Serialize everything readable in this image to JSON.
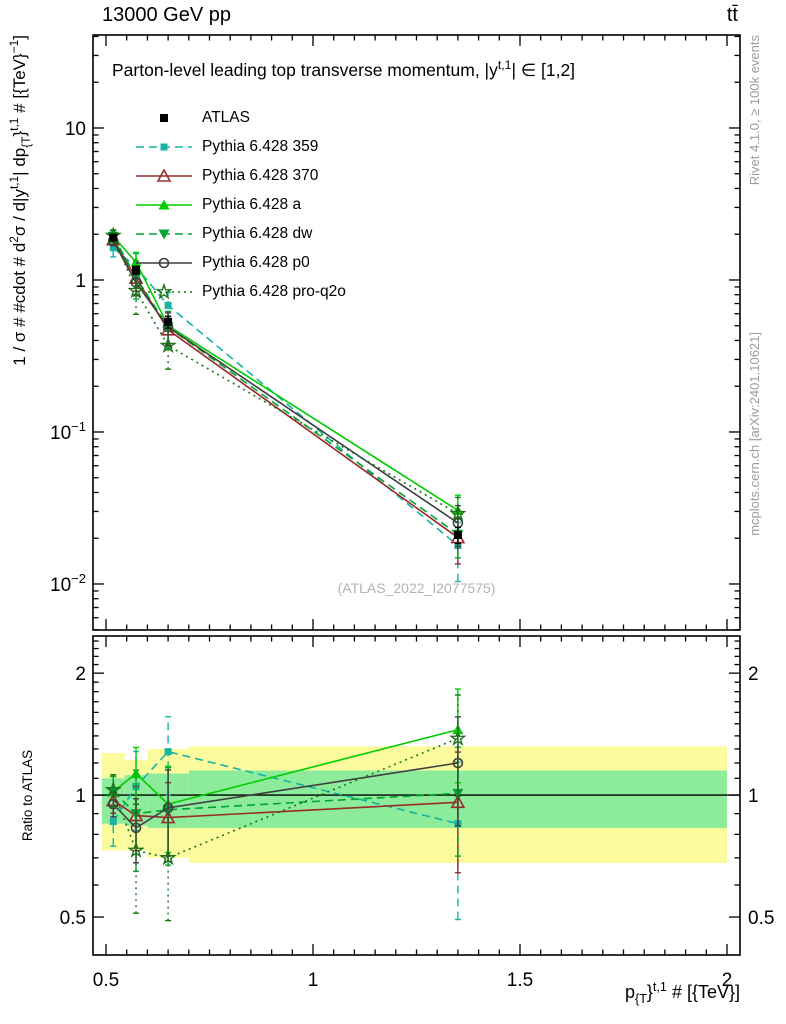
{
  "header": {
    "left": "13000 GeV pp",
    "right": "tt̄"
  },
  "side_notes": {
    "top_right": "Rivet 4.1.0, ≥ 100k events",
    "bottom_right": "mcplots.cern.ch [arXiv:2401.10621]"
  },
  "watermark": "(ATLAS_2022_I2077575)",
  "rich_labels": {
    "plot_title": [
      {
        "t": "Parton-level leading top transverse momentum, |y"
      },
      {
        "t": "t,1",
        "v": "sup"
      },
      {
        "t": "| ∈ [1,2]"
      }
    ],
    "ylabel_main": [
      {
        "t": "1 / σ # #cdot # d"
      },
      {
        "t": "2",
        "v": "sup"
      },
      {
        "t": "σ / d|y"
      },
      {
        "t": "t,1",
        "v": "sup"
      },
      {
        "t": "| dp"
      },
      {
        "t": "{T",
        "v": "sub"
      },
      {
        "t": "}"
      },
      {
        "t": "t,1",
        "v": "sup"
      },
      {
        "t": " # [{TeV}"
      },
      {
        "t": "−1",
        "v": "sup"
      },
      {
        "t": "]"
      }
    ],
    "xlabel": [
      {
        "t": "p"
      },
      {
        "t": "{T",
        "v": "sub"
      },
      {
        "t": "}"
      },
      {
        "t": "t,1",
        "v": "sup"
      },
      {
        "t": " # [{TeV}]"
      }
    ]
  },
  "chart_data": {
    "type": "line",
    "title": "Parton-level leading top transverse momentum, |y^{t,1}| ∈ [1,2]",
    "xlabel": "p_{T}}^{t,1} # [{TeV}]",
    "ylabel": "1 / σ # #cdot # d²σ / d|y^{t,1}| dp_{T}}^{t,1} # [{TeV}^−1]",
    "ylabel_ratio": "Ratio to ATLAS",
    "x_axis": {
      "min": 0.4686,
      "max": 2.0314,
      "major_ticks": [
        0.5,
        1,
        1.5,
        2
      ],
      "labels": [
        "0.5",
        "1",
        "1.5",
        "2"
      ],
      "minor_step": 0.05
    },
    "y_axis_main": {
      "scale": "log",
      "min": 0.00498,
      "max": 40.9,
      "labeled_ticks": [
        {
          "v": 10,
          "base": "10",
          "exp": ""
        },
        {
          "v": 1,
          "base": "1",
          "exp": ""
        },
        {
          "v": 0.1,
          "base": "10",
          "exp": "−1"
        },
        {
          "v": 0.01,
          "base": "10",
          "exp": "−2"
        }
      ]
    },
    "y_axis_ratio": {
      "scale": "log",
      "min": 0.403,
      "max": 2.47,
      "labeled_ticks": [
        {
          "v": 2,
          "base": "2",
          "exp": ""
        },
        {
          "v": 1,
          "base": "1",
          "exp": ""
        },
        {
          "v": 0.5,
          "base": "0.5",
          "exp": ""
        }
      ],
      "minor_step": 0.1
    },
    "x": [
      0.5175,
      0.5725,
      0.65,
      1.35
    ],
    "bin_edges": [
      0.49,
      0.545,
      0.6,
      0.7,
      2.0
    ],
    "reference": {
      "id": "atlas",
      "label": "ATLAS",
      "color": "#000000",
      "marker": "square-filled",
      "values": [
        1.9,
        1.16,
        0.53,
        0.021
      ],
      "err_frac": [
        0.04,
        0.06,
        0.09,
        0.12
      ]
    },
    "series": [
      {
        "id": "pythia-359",
        "label": "Pythia 6.428 359",
        "color": "#16b3a2",
        "line": "dashed",
        "marker": "square-filled",
        "values": [
          1.63,
          1.22,
          0.68,
          0.0179
        ],
        "ratio": [
          0.86,
          1.05,
          1.28,
          0.85
        ],
        "err_frac": [
          0.13,
          0.22,
          0.22,
          0.42
        ]
      },
      {
        "id": "pythia-370",
        "label": "Pythia 6.428 370",
        "color": "#992b2b",
        "line": "solid",
        "marker": "triangle-open",
        "values": [
          1.84,
          1.03,
          0.47,
          0.0202
        ],
        "ratio": [
          0.97,
          0.89,
          0.88,
          0.96
        ],
        "err_frac": [
          0.07,
          0.18,
          0.22,
          0.33
        ]
      },
      {
        "id": "pythia-a",
        "label": "Pythia 6.428 a",
        "color": "#00cc00",
        "line": "solid",
        "marker": "triangle-filled",
        "values": [
          1.94,
          1.31,
          0.5,
          0.0305
        ],
        "ratio": [
          1.02,
          1.13,
          0.95,
          1.45
        ],
        "err_frac": [
          0.09,
          0.16,
          0.24,
          0.26
        ]
      },
      {
        "id": "pythia-dw",
        "label": "Pythia 6.428 dw",
        "color": "#00a432",
        "line": "dashed",
        "marker": "triangle-down-filled",
        "values": [
          1.94,
          1.04,
          0.49,
          0.0212
        ],
        "ratio": [
          1.02,
          0.9,
          0.92,
          1.01
        ],
        "err_frac": [
          0.09,
          0.28,
          0.27,
          0.3
        ]
      },
      {
        "id": "pythia-p0",
        "label": "Pythia 6.428 p0",
        "color": "#3f3f3f",
        "line": "solid",
        "marker": "circle-open",
        "values": [
          1.81,
          0.96,
          0.49,
          0.0252
        ],
        "ratio": [
          0.95,
          0.83,
          0.93,
          1.2
        ],
        "err_frac": [
          0.07,
          0.18,
          0.24,
          0.3
        ]
      },
      {
        "id": "pythia-pro-q2o",
        "label": "Pythia 6.428 pro-q2o",
        "color": "#1a7519",
        "line": "dotted",
        "marker": "star-open",
        "values": [
          1.96,
          0.85,
          0.37,
          0.029
        ],
        "ratio": [
          1.03,
          0.73,
          0.7,
          1.38
        ],
        "err_frac": [
          0.09,
          0.3,
          0.3,
          0.28
        ]
      }
    ],
    "uncertainty_bands": {
      "yellow_color": "#fbfb9e",
      "green_color": "#8cec9c",
      "bins": [
        {
          "yellow": [
            0.73,
            1.27
          ],
          "green": [
            0.85,
            1.1
          ]
        },
        {
          "yellow": [
            0.73,
            1.22
          ],
          "green": [
            0.84,
            1.12
          ]
        },
        {
          "yellow": [
            0.7,
            1.3
          ],
          "green": [
            0.83,
            1.13
          ]
        },
        {
          "yellow": [
            0.68,
            1.32
          ],
          "green": [
            0.83,
            1.15
          ]
        }
      ]
    },
    "legend_position": "top-left",
    "grid": false
  }
}
